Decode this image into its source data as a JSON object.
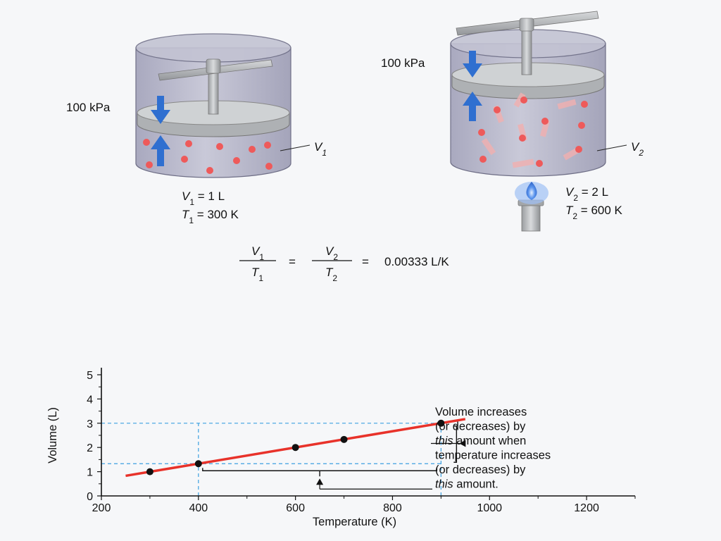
{
  "diagram": {
    "left_cylinder": {
      "pressure": "100 kPa",
      "volume_marker": "V",
      "volume_marker_sub": "1",
      "volume_eq": {
        "sym": "V",
        "sub": "1",
        "rest": " = 1 L"
      },
      "temp_eq": {
        "sym": "T",
        "sub": "1",
        "rest": " = 300 K"
      }
    },
    "right_cylinder": {
      "pressure": "100 kPa",
      "volume_marker": "V",
      "volume_marker_sub": "2",
      "volume_eq": {
        "sym": "V",
        "sub": "2",
        "rest": " = 2 L"
      },
      "temp_eq": {
        "sym": "T",
        "sub": "2",
        "rest": " = 600 K"
      }
    },
    "equation": {
      "num1": "V",
      "num1_sub": "1",
      "den1": "T",
      "den1_sub": "1",
      "num2": "V",
      "num2_sub": "2",
      "den2": "T",
      "den2_sub": "2",
      "eq1": "=",
      "eq2": "=",
      "result": "0.00333 L/K"
    },
    "colors": {
      "cylinder": "#b9b9cc",
      "piston": "#c4c7c9",
      "arrow": "#2f6fd0",
      "particle": "#ee5a5a",
      "flame": "#3f7fe0"
    }
  },
  "chart_data": {
    "type": "line",
    "xlabel": "Temperature (K)",
    "ylabel": "Volume (L)",
    "xlim": [
      200,
      1300
    ],
    "ylim": [
      0,
      5
    ],
    "x_ticks": [
      "200",
      "400",
      "600",
      "800",
      "1000",
      "1200"
    ],
    "y_ticks": [
      "0",
      "1",
      "2",
      "3",
      "4",
      "5"
    ],
    "points": [
      {
        "x": 300,
        "y": 1.0
      },
      {
        "x": 400,
        "y": 1.33
      },
      {
        "x": 600,
        "y": 2.0
      },
      {
        "x": 700,
        "y": 2.33
      },
      {
        "x": 900,
        "y": 3.0
      }
    ],
    "fit_line": {
      "x": [
        250,
        950
      ],
      "y": [
        0.83,
        3.17
      ]
    },
    "guides": {
      "x_values": [
        400,
        900
      ],
      "y_values": [
        1.33,
        3.0
      ]
    },
    "annotation_lines": [
      {
        "text": "Volume increases",
        "italic_word": ""
      },
      {
        "text": "(or decreases) by",
        "italic_word": ""
      },
      {
        "text": " amount when",
        "italic_word": "this"
      },
      {
        "text": "temperature increases",
        "italic_word": ""
      },
      {
        "text": "(or decreases) by",
        "italic_word": ""
      },
      {
        "text": " amount.",
        "italic_word": "this"
      }
    ],
    "grid": false,
    "colors": {
      "line": "#e8322a",
      "guide": "#3da0e0",
      "point": "#111111"
    }
  }
}
